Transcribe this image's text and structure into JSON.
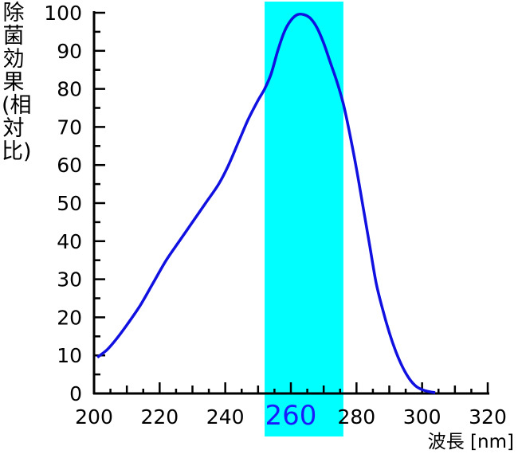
{
  "chart_data": {
    "type": "line",
    "title": "",
    "xlabel": "波長 [nm]",
    "ylabel": "除菌効果(相対比)",
    "xlim": [
      200,
      320
    ],
    "ylim": [
      0,
      100
    ],
    "x_ticks": [
      "200",
      "220",
      "240",
      "260",
      "280",
      "300",
      "320"
    ],
    "y_ticks": [
      "0",
      "10",
      "20",
      "30",
      "40",
      "50",
      "60",
      "70",
      "80",
      "90",
      "100"
    ],
    "highlight_band": {
      "x_range": [
        252,
        276
      ],
      "label": "260",
      "color": "#00ffff",
      "label_color": "#1a1aff"
    },
    "series": [
      {
        "color": "#1010e0",
        "x": [
          201,
          204,
          207,
          210,
          214,
          218,
          222,
          226,
          230,
          234,
          238,
          241,
          244,
          247,
          250,
          252,
          254,
          256,
          258,
          260,
          262,
          264,
          266,
          268,
          270,
          272,
          274,
          276,
          278,
          280,
          282,
          284,
          286,
          288,
          290,
          292,
          294,
          296,
          298,
          300,
          302,
          304
        ],
        "y": [
          9.5,
          11.5,
          14.5,
          18,
          23,
          29,
          35,
          40,
          45,
          50,
          55,
          60,
          66,
          72,
          77,
          80,
          84,
          90,
          95,
          98,
          99.5,
          99.5,
          98.5,
          96,
          92,
          87,
          82,
          76,
          68,
          59,
          49,
          39,
          29,
          22,
          16,
          11,
          7,
          4,
          2,
          1,
          0.5,
          0.2
        ]
      }
    ]
  }
}
